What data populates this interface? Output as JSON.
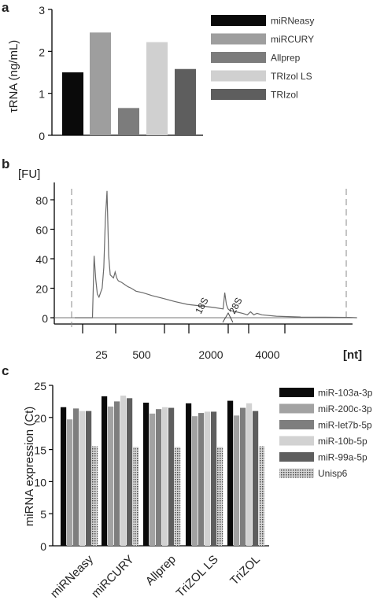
{
  "chart_data": [
    {
      "panel": "a",
      "type": "bar",
      "categories": [
        "miRNeasy",
        "miRCURY",
        "Allprep",
        "TRIzol LS",
        "TRIzol"
      ],
      "values": [
        1.5,
        2.45,
        0.65,
        2.22,
        1.58
      ],
      "colors": [
        "#0a0a0a",
        "#9e9e9e",
        "#7c7c7c",
        "#d0d0d0",
        "#5e5e5e"
      ],
      "ylabel": "τRNA (ng/mL)",
      "ylim": [
        0,
        3
      ],
      "yticks": [
        0,
        1,
        2,
        3
      ],
      "legend": {
        "placement": "right",
        "entries": [
          "miRNeasy",
          "miRCURY",
          "Allprep",
          "TRIzol LS",
          "TRIzol"
        ]
      },
      "grid": false
    },
    {
      "panel": "b",
      "type": "line",
      "ylabel": "[FU]",
      "xlabel": "[nt]",
      "ylim": [
        -3,
        90
      ],
      "yticks": [
        0,
        20,
        40,
        60,
        80
      ],
      "xticks": [
        "25",
        "500",
        "2000",
        "4000"
      ],
      "annotations": [
        "18S",
        "28S"
      ],
      "series": [
        {
          "x": [
            0,
            5,
            8,
            11,
            12,
            13,
            14,
            15,
            16,
            17,
            18,
            19,
            20,
            21,
            22,
            24,
            25,
            26,
            27,
            29,
            33,
            35,
            38,
            42,
            48,
            55,
            62,
            70,
            78,
            86,
            92,
            93,
            94,
            95,
            96,
            100,
            104,
            107,
            109,
            111,
            113,
            116,
            125,
            140,
            155,
            170,
            175
          ],
          "y": [
            0,
            0,
            0,
            0,
            42,
            26,
            16,
            14,
            17,
            20,
            34,
            67,
            86,
            42,
            29,
            27,
            31,
            27,
            25,
            24,
            21,
            20,
            18,
            17,
            15,
            13,
            11,
            9,
            8,
            7,
            6,
            17,
            9,
            6,
            5,
            4,
            3,
            2,
            4,
            2,
            3,
            2,
            1,
            0.5,
            0.3,
            0.2,
            0
          ]
        }
      ],
      "grid": false
    },
    {
      "panel": "c",
      "type": "bar",
      "categories": [
        "miRNeasy",
        "miRCURY",
        "Allprep",
        "TriZOL LS",
        "TriZOL"
      ],
      "ylabel": "miRNA expression (Ct)",
      "ylim": [
        0,
        25
      ],
      "yticks": [
        0,
        5,
        10,
        15,
        20,
        25
      ],
      "series": [
        {
          "name": "miR-103a-3p",
          "values": [
            21.6,
            23.3,
            22.3,
            22.2,
            22.6
          ],
          "color": "#0a0a0a"
        },
        {
          "name": "miR-200c-3p",
          "values": [
            19.7,
            21.7,
            20.6,
            20.2,
            20.3
          ],
          "color": "#a2a2a2"
        },
        {
          "name": "miR-let7b-5p",
          "values": [
            21.4,
            22.5,
            21.3,
            20.7,
            21.5
          ],
          "color": "#7e7e7e"
        },
        {
          "name": "miR-10b-5p",
          "values": [
            21.0,
            23.4,
            21.6,
            20.9,
            22.2
          ],
          "color": "#d2d2d2"
        },
        {
          "name": "miR-99a-5p",
          "values": [
            21.0,
            23.0,
            21.5,
            20.9,
            21.0
          ],
          "color": "#5e5e5e"
        },
        {
          "name": "Unisp6",
          "values": [
            15.5,
            15.4,
            15.4,
            15.4,
            15.5
          ],
          "color": "#bdbdbd",
          "pattern": "dots"
        }
      ],
      "legend": {
        "placement": "right",
        "entries": [
          "miR-103a-3p",
          "miR-200c-3p",
          "miR-let7b-5p",
          "miR-10b-5p",
          "miR-99a-5p",
          "Unisp6"
        ]
      },
      "grid": false
    }
  ]
}
